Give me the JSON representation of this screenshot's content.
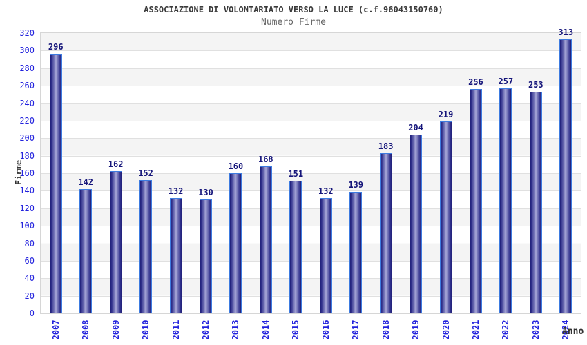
{
  "chart_data": {
    "type": "bar",
    "title": "ASSOCIAZIONE DI VOLONTARIATO VERSO LA LUCE (c.f.96043150760)",
    "subtitle": "Numero Firme",
    "xlabel": "Anno",
    "ylabel": "Firme",
    "categories": [
      "2007",
      "2008",
      "2009",
      "2010",
      "2011",
      "2012",
      "2013",
      "2014",
      "2015",
      "2016",
      "2017",
      "2018",
      "2019",
      "2020",
      "2021",
      "2022",
      "2023",
      "2024"
    ],
    "values": [
      296,
      142,
      162,
      152,
      132,
      130,
      160,
      168,
      151,
      132,
      139,
      183,
      204,
      219,
      256,
      257,
      253,
      313
    ],
    "ylim": [
      0,
      320
    ],
    "ytick_step": 20,
    "grid": "horizontal-bands",
    "legend": "none",
    "colors": {
      "bar_border": "#3d7be0",
      "bar_edge_dark": "#1f1f78",
      "bar_center_light": "#a8a8d8",
      "tick_text": "#2222dd",
      "value_label_text": "#15157a",
      "band_gray": "#f4f4f4",
      "gridline": "#e0e0e0",
      "plot_border": "#d6d6d6",
      "title_text": "#3a3a3a",
      "subtitle_text": "#666666",
      "axis_title_text": "#333333",
      "background": "#ffffff"
    }
  }
}
